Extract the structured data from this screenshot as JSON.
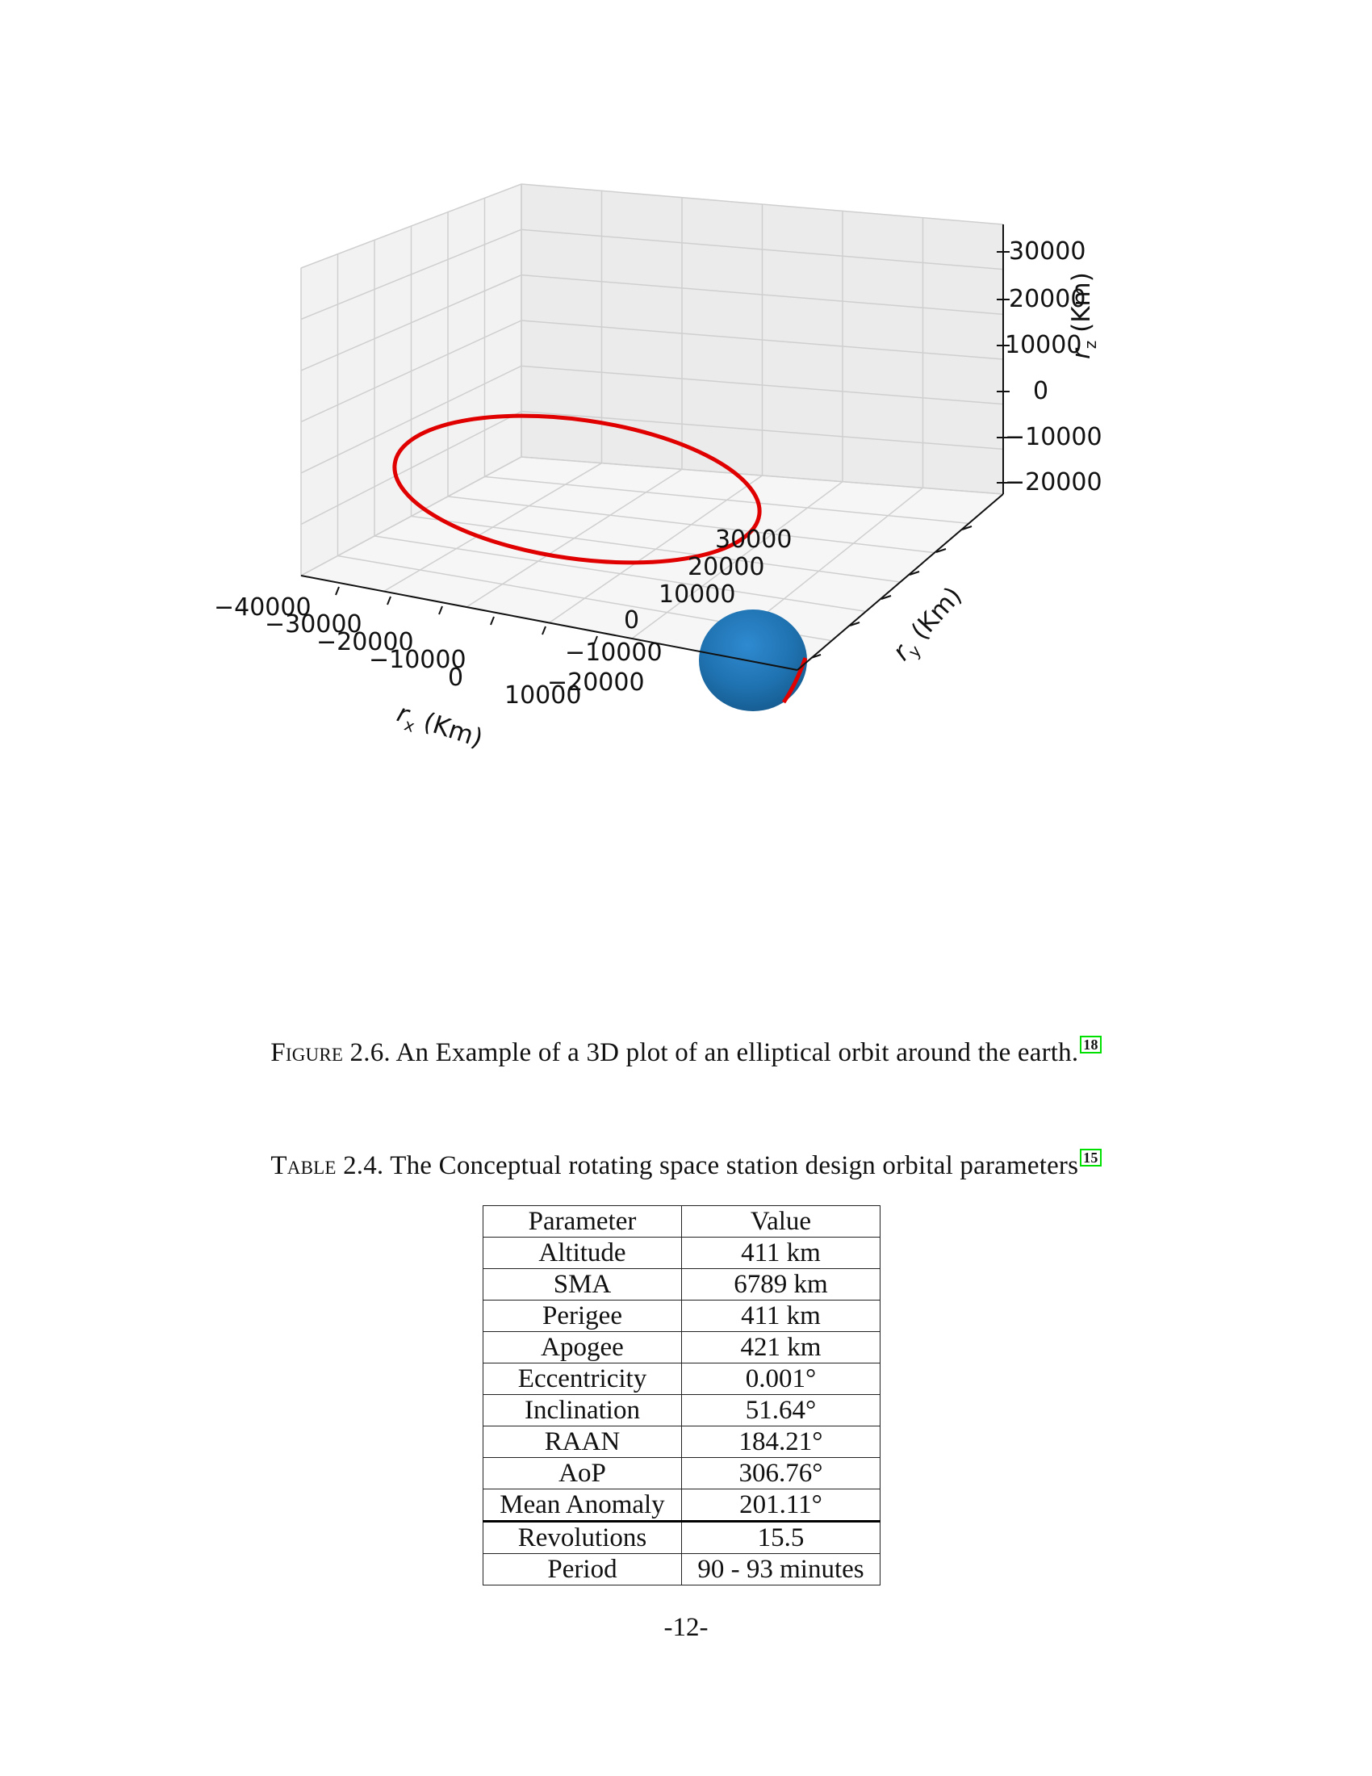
{
  "figure": {
    "caption_label": "Figure 2.6.",
    "caption_text": "An Example of a 3D plot of an elliptical orbit around the earth.",
    "caption_ref": "18"
  },
  "chart_data": {
    "type": "scatter",
    "projection": "3d",
    "grid": true,
    "x_label": "r_x (Km)",
    "y_label": "r_y (Km)",
    "z_label": "r_z (Km)",
    "x_ticks": [
      "−40000",
      "−30000",
      "−20000",
      "−10000",
      "0",
      "10000"
    ],
    "y_ticks": [
      "−20000",
      "−10000",
      "0",
      "10000",
      "20000",
      "30000"
    ],
    "z_ticks": [
      "−20000",
      "−10000",
      "0",
      "10000",
      "20000",
      "30000"
    ],
    "series": [
      {
        "kind": "line",
        "color": "#e00000",
        "description_values": {
          "x_range": [
            -40000,
            0
          ],
          "y_range": [
            -15000,
            30000
          ],
          "z_approx": 0
        }
      },
      {
        "kind": "surface",
        "color": "#1f77b4",
        "center": [
          0,
          0,
          0
        ],
        "radius_km": 6378
      }
    ],
    "xlim": [
      -45000,
      12000
    ],
    "ylim": [
      -22000,
      36000
    ],
    "zlim": [
      -22000,
      36000
    ]
  },
  "table": {
    "caption_label": "Table 2.4.",
    "caption_text": "The Conceptual rotating space station design orbital parameters",
    "caption_ref": "15",
    "headers": [
      "Parameter",
      "Value"
    ],
    "rows": [
      [
        "Altitude",
        "411 km"
      ],
      [
        "SMA",
        "6789 km"
      ],
      [
        "Perigee",
        "411 km"
      ],
      [
        "Apogee",
        "421 km"
      ],
      [
        "Eccentricity",
        "0.001°"
      ],
      [
        "Inclination",
        "51.64°"
      ],
      [
        "RAAN",
        "184.21°"
      ],
      [
        "AoP",
        "306.76°"
      ],
      [
        "Mean Anomaly",
        "201.11°"
      ],
      [
        "Revolutions",
        "15.5"
      ],
      [
        "Period",
        "90 - 93 minutes"
      ]
    ]
  },
  "page_number": "-12-"
}
